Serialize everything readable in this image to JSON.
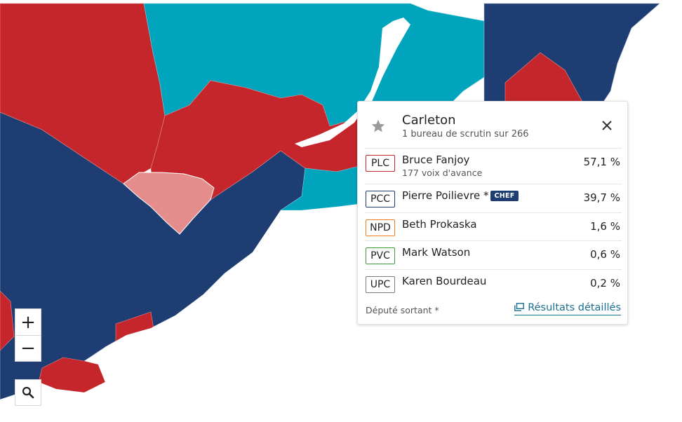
{
  "map": {
    "colors": {
      "liberal": "#c4262b",
      "conservative": "#1e3e73",
      "bloc": "#00a4bd",
      "selected": "#e58c8c",
      "water": "#ffffff",
      "border": "#9aa9c4"
    }
  },
  "controls": {
    "zoom_in": "+",
    "zoom_out": "−",
    "search_icon": "magnifier"
  },
  "card": {
    "riding": "Carleton",
    "polling_status": "1 bureau de scrutin sur 266",
    "candidates": [
      {
        "party": "PLC",
        "party_color": "#c4262b",
        "name": "Bruce Fanjoy",
        "lead": "177 voix d'avance",
        "pct": "57,1 %"
      },
      {
        "party": "PCC",
        "party_color": "#1e3e73",
        "name": "Pierre Poilievre *",
        "chef": "CHEF",
        "pct": "39,7 %"
      },
      {
        "party": "NPD",
        "party_color": "#ef7d1e",
        "name": "Beth Prokaska",
        "pct": "1,6 %"
      },
      {
        "party": "PVC",
        "party_color": "#3d9b35",
        "name": "Mark Watson",
        "pct": "0,6 %"
      },
      {
        "party": "UPC",
        "party_color": "#7a7a7a",
        "name": "Karen Bourdeau",
        "pct": "0,2 %"
      }
    ],
    "footnote": "Député sortant *",
    "details_link": "Résultats détaillés"
  }
}
